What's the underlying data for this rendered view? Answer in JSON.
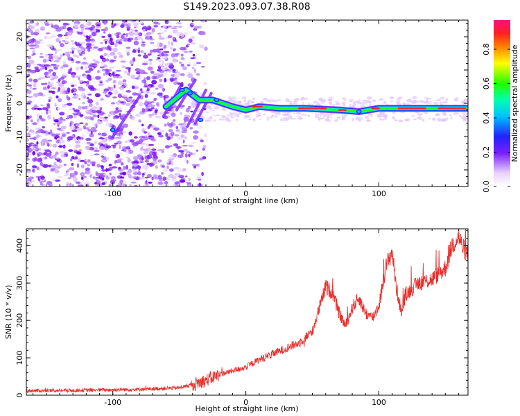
{
  "title": "S149.2023.093.07.38.R08",
  "chart_data": [
    {
      "type": "heatmap",
      "xlabel": "Height of straight line (km)",
      "ylabel": "Frequency (Hz)",
      "xlim": [
        -165,
        167
      ],
      "ylim": [
        -25,
        25
      ],
      "xticks": [
        -100,
        0,
        100
      ],
      "yticks": [
        -20,
        -10,
        0,
        10,
        20
      ],
      "colorbar": {
        "label": "Normalized spectral amplitude",
        "range": [
          0,
          0.97
        ],
        "ticks": [
          "0.0",
          "0.2",
          "0.4",
          "0.6",
          "0.8"
        ],
        "tick_values": [
          0,
          0.2,
          0.4,
          0.6,
          0.8
        ]
      },
      "description_points": {
        "noise_region_x": [
          -165,
          -50
        ],
        "transition_x": [
          -50,
          -20
        ],
        "signal_trace": [
          {
            "x": -60,
            "f": -1
          },
          {
            "x": -45,
            "f": 4
          },
          {
            "x": -35,
            "f": 1
          },
          {
            "x": -25,
            "f": 1
          },
          {
            "x": -10,
            "f": -1
          },
          {
            "x": 0,
            "f": -2
          },
          {
            "x": 10,
            "f": -1
          },
          {
            "x": 25,
            "f": -1.5
          },
          {
            "x": 45,
            "f": -1.5
          },
          {
            "x": 70,
            "f": -2
          },
          {
            "x": 85,
            "f": -2.5
          },
          {
            "x": 100,
            "f": -1.5
          },
          {
            "x": 115,
            "f": -1.5
          },
          {
            "x": 140,
            "f": -1.5
          },
          {
            "x": 167,
            "f": -1.5
          }
        ]
      }
    },
    {
      "type": "line",
      "xlabel": "Height of straight line (km)",
      "ylabel": "SNR (10 * v/v)",
      "xlim": [
        -165,
        167
      ],
      "ylim": [
        0,
        445
      ],
      "xticks": [
        -100,
        0,
        100
      ],
      "yticks": [
        0,
        100,
        200,
        300,
        400
      ],
      "color": "#e8302c",
      "series": [
        {
          "name": "SNR",
          "x": [
            -165,
            -150,
            -130,
            -110,
            -90,
            -70,
            -50,
            -40,
            -30,
            -20,
            -10,
            0,
            10,
            20,
            30,
            40,
            50,
            55,
            60,
            65,
            70,
            75,
            80,
            85,
            90,
            95,
            100,
            105,
            110,
            113,
            117,
            120,
            125,
            130,
            140,
            150,
            155,
            160,
            163,
            167
          ],
          "y": [
            12,
            12,
            13,
            14,
            15,
            17,
            20,
            28,
            40,
            55,
            65,
            75,
            95,
            110,
            125,
            140,
            170,
            230,
            290,
            275,
            220,
            185,
            235,
            260,
            220,
            205,
            240,
            340,
            385,
            290,
            220,
            270,
            285,
            300,
            310,
            340,
            400,
            425,
            395,
            375
          ]
        }
      ]
    }
  ]
}
